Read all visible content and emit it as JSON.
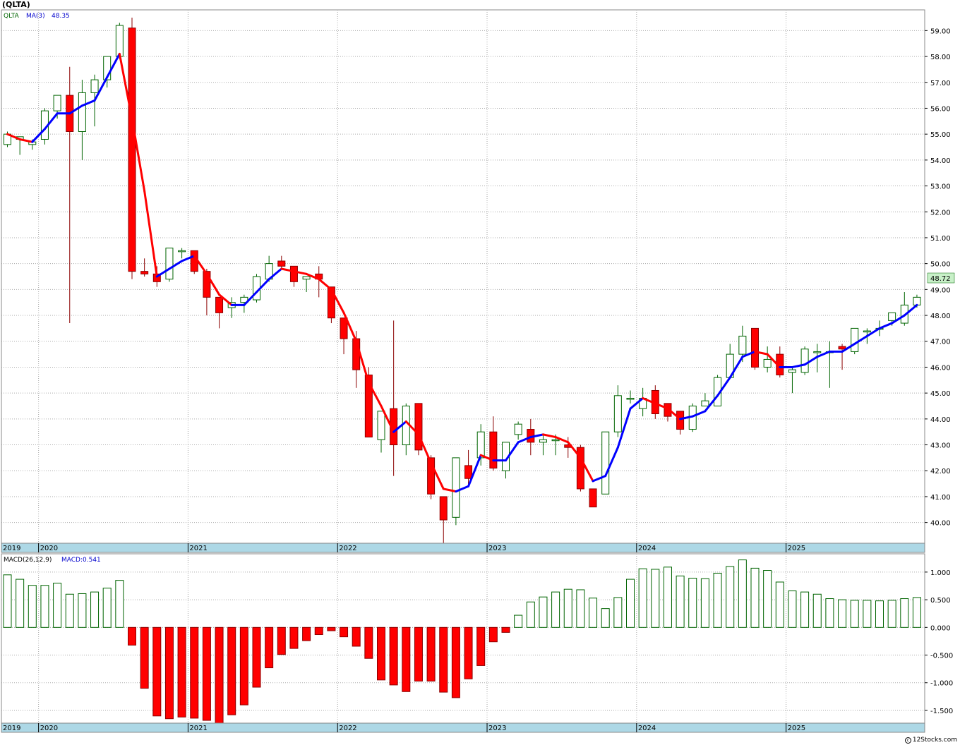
{
  "title": "(QLTA)",
  "legend_price": {
    "ticker": "QLTA",
    "ma_label": "MA(3)",
    "ma_value": "48.35"
  },
  "legend_macd": {
    "label": "MACD(26,12,9)",
    "value_label": "MACD:0.541"
  },
  "last_price_label": "48.72",
  "credit": "12Stocks.com",
  "colors": {
    "up": "#006400",
    "down": "#ff0000",
    "ma_up": "#0000ff",
    "ma_down": "#ff0000",
    "axis_band": "#add8e6",
    "price_tag_bg": "#c8f0c8",
    "grid": "#aaaaaa"
  },
  "chart_data": [
    {
      "type": "candlestick",
      "period": "monthly",
      "ylim": [
        39.2,
        59.8
      ],
      "yticks": [
        "40.00",
        "41.00",
        "42.00",
        "43.00",
        "44.00",
        "45.00",
        "46.00",
        "47.00",
        "48.00",
        "49.00",
        "50.00",
        "51.00",
        "52.00",
        "53.00",
        "54.00",
        "55.00",
        "56.00",
        "57.00",
        "58.00",
        "59.00"
      ],
      "x_axis_labels": [
        "2019",
        "2020",
        "2021",
        "2022",
        "2023",
        "2024",
        "2025"
      ],
      "ohlc": [
        [
          54.6,
          55.1,
          54.5,
          55.0
        ],
        [
          54.8,
          54.9,
          54.2,
          54.9
        ],
        [
          54.6,
          54.8,
          54.4,
          54.7
        ],
        [
          54.8,
          56.0,
          54.6,
          55.9
        ],
        [
          55.9,
          56.5,
          55.6,
          56.5
        ],
        [
          56.5,
          57.6,
          47.7,
          55.1
        ],
        [
          55.1,
          57.1,
          54.0,
          56.6
        ],
        [
          56.6,
          57.3,
          55.3,
          57.1
        ],
        [
          57.1,
          58.0,
          56.8,
          58.0
        ],
        [
          58.0,
          59.3,
          57.9,
          59.2
        ],
        [
          59.1,
          59.5,
          49.4,
          49.7
        ],
        [
          49.7,
          50.2,
          49.5,
          49.6
        ],
        [
          49.6,
          49.9,
          49.1,
          49.3
        ],
        [
          49.4,
          50.6,
          49.3,
          50.6
        ],
        [
          50.5,
          50.6,
          50.2,
          50.5
        ],
        [
          50.5,
          50.5,
          49.6,
          49.7
        ],
        [
          49.7,
          49.8,
          48.0,
          48.7
        ],
        [
          48.7,
          48.7,
          47.5,
          48.1
        ],
        [
          48.3,
          48.7,
          47.9,
          48.5
        ],
        [
          48.5,
          48.8,
          48.1,
          48.7
        ],
        [
          48.6,
          49.6,
          48.5,
          49.5
        ],
        [
          49.4,
          50.3,
          49.3,
          50.0
        ],
        [
          50.1,
          50.3,
          49.8,
          49.9
        ],
        [
          49.9,
          49.9,
          49.1,
          49.3
        ],
        [
          49.4,
          49.5,
          48.9,
          49.5
        ],
        [
          49.6,
          49.9,
          48.7,
          49.4
        ],
        [
          49.1,
          49.1,
          47.7,
          47.9
        ],
        [
          47.9,
          47.9,
          46.5,
          47.1
        ],
        [
          47.1,
          47.4,
          45.2,
          45.9
        ],
        [
          45.7,
          46.0,
          43.3,
          43.3
        ],
        [
          43.2,
          44.3,
          42.7,
          44.3
        ],
        [
          44.4,
          47.8,
          41.8,
          43.0
        ],
        [
          43.0,
          44.6,
          42.6,
          44.5
        ],
        [
          44.6,
          44.6,
          42.6,
          42.8
        ],
        [
          42.5,
          42.6,
          40.9,
          41.1
        ],
        [
          41.0,
          41.0,
          39.2,
          40.1
        ],
        [
          40.2,
          42.5,
          39.9,
          42.5
        ],
        [
          42.2,
          42.8,
          41.4,
          41.7
        ],
        [
          42.5,
          43.8,
          42.2,
          43.5
        ],
        [
          43.5,
          44.1,
          42.0,
          42.1
        ],
        [
          42.0,
          43.1,
          41.7,
          43.1
        ],
        [
          43.4,
          43.9,
          43.2,
          43.8
        ],
        [
          43.6,
          44.0,
          42.6,
          43.1
        ],
        [
          43.1,
          43.4,
          42.6,
          43.2
        ],
        [
          43.2,
          43.4,
          42.6,
          43.2
        ],
        [
          43.0,
          43.3,
          42.5,
          42.9
        ],
        [
          42.9,
          43.0,
          41.2,
          41.3
        ],
        [
          41.3,
          41.3,
          40.6,
          40.6
        ],
        [
          41.1,
          43.5,
          41.1,
          43.5
        ],
        [
          43.5,
          45.3,
          43.3,
          44.9
        ],
        [
          44.8,
          45.1,
          44.6,
          44.8
        ],
        [
          44.4,
          45.2,
          44.1,
          44.8
        ],
        [
          45.1,
          45.3,
          44.0,
          44.2
        ],
        [
          44.6,
          44.6,
          43.9,
          44.1
        ],
        [
          44.3,
          44.3,
          43.4,
          43.6
        ],
        [
          43.6,
          44.6,
          43.5,
          44.5
        ],
        [
          44.5,
          45.0,
          44.5,
          44.7
        ],
        [
          44.5,
          45.7,
          44.5,
          45.6
        ],
        [
          45.6,
          46.9,
          45.6,
          46.5
        ],
        [
          46.5,
          47.6,
          46.2,
          47.2
        ],
        [
          47.5,
          47.5,
          45.9,
          46.0
        ],
        [
          46.0,
          46.8,
          45.8,
          46.3
        ],
        [
          46.5,
          46.8,
          45.6,
          45.7
        ],
        [
          45.8,
          46.0,
          45.0,
          45.9
        ],
        [
          45.8,
          46.8,
          45.7,
          46.7
        ],
        [
          46.6,
          46.9,
          45.8,
          46.6
        ],
        [
          46.6,
          47.0,
          45.2,
          46.6
        ],
        [
          46.8,
          46.9,
          45.9,
          46.7
        ],
        [
          46.6,
          47.5,
          46.5,
          47.5
        ],
        [
          47.4,
          47.5,
          46.9,
          47.4
        ],
        [
          47.5,
          47.8,
          47.2,
          47.5
        ],
        [
          47.8,
          48.1,
          47.6,
          48.1
        ],
        [
          47.7,
          48.9,
          47.6,
          48.4
        ],
        [
          48.4,
          48.8,
          48.3,
          48.7
        ]
      ],
      "ma3": [
        55.0,
        54.8,
        54.7,
        55.2,
        55.8,
        55.8,
        56.1,
        56.3,
        57.2,
        58.1,
        55.6,
        52.8,
        49.5,
        49.8,
        50.1,
        50.3,
        49.6,
        48.8,
        48.4,
        48.4,
        48.9,
        49.4,
        49.8,
        49.7,
        49.6,
        49.4,
        49.0,
        48.1,
        47.0,
        45.4,
        44.5,
        43.5,
        43.9,
        43.4,
        42.3,
        41.3,
        41.2,
        41.4,
        42.6,
        42.4,
        42.4,
        43.1,
        43.3,
        43.4,
        43.3,
        43.1,
        42.5,
        41.6,
        41.8,
        42.9,
        44.4,
        44.8,
        44.6,
        44.4,
        44.0,
        44.1,
        44.3,
        44.9,
        45.6,
        46.4,
        46.6,
        46.5,
        46.0,
        46.0,
        46.1,
        46.4,
        46.6,
        46.6,
        46.9,
        47.2,
        47.5,
        47.7,
        48.0,
        48.4
      ]
    },
    {
      "type": "bar",
      "series_label": "MACD(26,12,9)",
      "ylim": [
        -1.73,
        1.33
      ],
      "yticks": [
        "1.000",
        "0.500",
        "0.000",
        "-0.500",
        "-1.000",
        "-1.500"
      ],
      "x_axis_labels": [
        "2019",
        "2020",
        "2021",
        "2022",
        "2023",
        "2024",
        "2025"
      ],
      "values": [
        0.95,
        0.87,
        0.76,
        0.76,
        0.8,
        0.6,
        0.61,
        0.64,
        0.71,
        0.85,
        -0.32,
        -1.1,
        -1.6,
        -1.65,
        -1.62,
        -1.64,
        -1.68,
        -1.75,
        -1.58,
        -1.4,
        -1.08,
        -0.73,
        -0.49,
        -0.38,
        -0.24,
        -0.13,
        -0.06,
        -0.17,
        -0.34,
        -0.56,
        -0.95,
        -1.04,
        -1.16,
        -0.97,
        -0.97,
        -1.17,
        -1.27,
        -0.93,
        -0.69,
        -0.26,
        -0.09,
        0.22,
        0.46,
        0.55,
        0.64,
        0.69,
        0.68,
        0.53,
        0.34,
        0.54,
        0.87,
        1.06,
        1.05,
        1.09,
        0.93,
        0.89,
        0.88,
        0.98,
        1.1,
        1.22,
        1.07,
        1.03,
        0.82,
        0.66,
        0.64,
        0.6,
        0.52,
        0.5,
        0.49,
        0.49,
        0.48,
        0.49,
        0.52,
        0.54
      ]
    }
  ]
}
